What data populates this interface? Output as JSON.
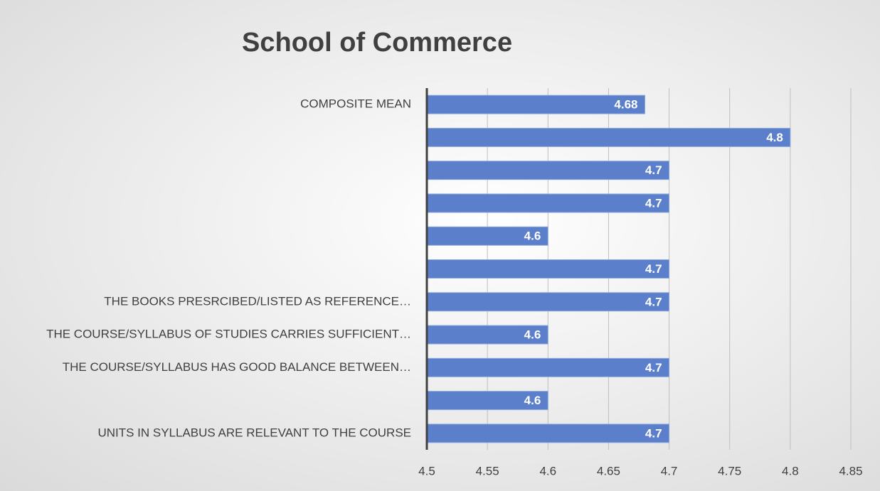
{
  "chart_data": {
    "type": "bar",
    "orientation": "horizontal",
    "title": "School of Commerce",
    "categories": [
      "COMPOSITE MEAN",
      null,
      null,
      null,
      null,
      null,
      "THE BOOKS PRESRCIBED/LISTED AS REFERENCE…",
      "THE COURSE/SYLLABUS OF STUDIES CARRIES SUFFICIENT…",
      "THE COURSE/SYLLABUS HAS GOOD BALANCE BETWEEN…",
      null,
      "UNITS IN SYLLABUS ARE RELEVANT TO THE COURSE"
    ],
    "values": [
      4.68,
      4.8,
      4.7,
      4.7,
      4.6,
      4.7,
      4.7,
      4.6,
      4.7,
      4.6,
      4.7
    ],
    "color": "#5b7fcb",
    "xlim": [
      4.5,
      4.85
    ],
    "xticks": [
      4.5,
      4.55,
      4.6,
      4.65,
      4.7,
      4.75,
      4.8,
      4.85
    ],
    "grid": true
  }
}
